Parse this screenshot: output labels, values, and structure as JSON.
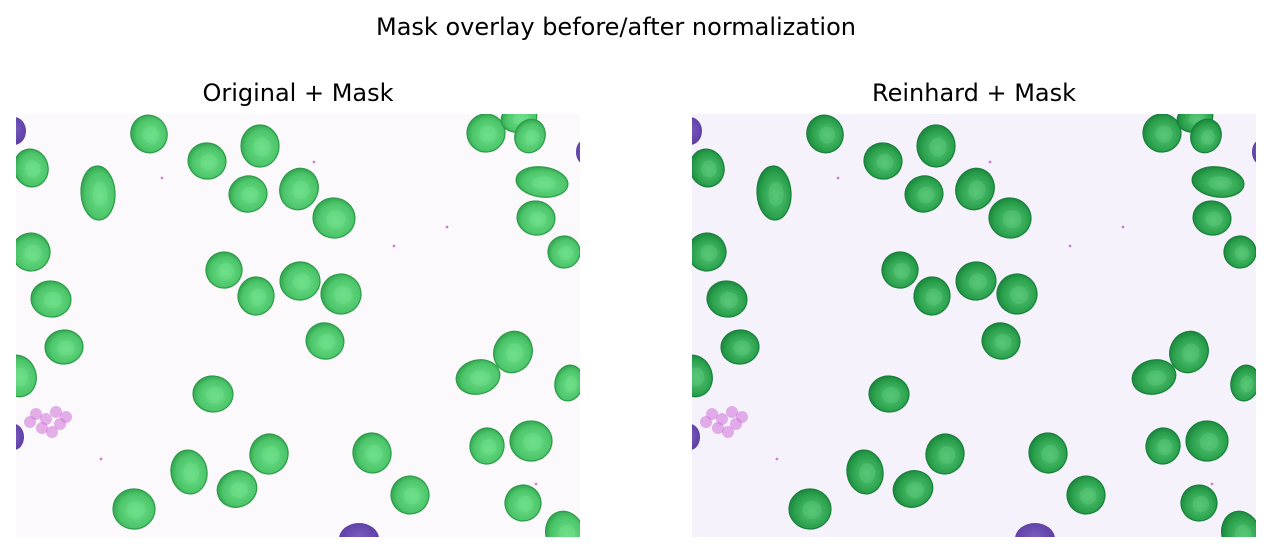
{
  "figure": {
    "title": "Mask overlay before/after normalization"
  },
  "panels": [
    {
      "title": "Original + Mask",
      "background": "#fbf9fb",
      "cell_fill": "#4cc56a",
      "cell_edge": "#2c9c48",
      "cell_core": "#6fe08a"
    },
    {
      "title": "Reinhard + Mask",
      "background": "#f6f2fb",
      "cell_fill": "#2aa04c",
      "cell_edge": "#18803a",
      "cell_core": "#58c878"
    }
  ],
  "colors": {
    "stained_nucleus": "#5a3aa0",
    "platelet_cluster": "#d070d8"
  }
}
